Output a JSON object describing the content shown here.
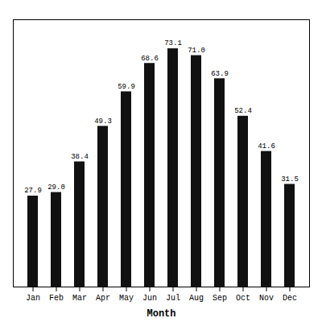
{
  "chart_data": {
    "type": "bar",
    "categories": [
      "Jan",
      "Feb",
      "Mar",
      "Apr",
      "May",
      "Jun",
      "Jul",
      "Aug",
      "Sep",
      "Oct",
      "Nov",
      "Dec"
    ],
    "values": [
      27.9,
      29.0,
      38.4,
      49.3,
      59.9,
      68.6,
      73.1,
      71.0,
      63.9,
      52.4,
      41.6,
      31.5
    ],
    "value_labels": [
      "27.9",
      "29.0",
      "38.4",
      "49.3",
      "59.9",
      "68.6",
      "73.1",
      "71.0",
      "63.9",
      "52.4",
      "41.6",
      "31.5"
    ],
    "color": "#111111",
    "xlabel": "Month",
    "ylim": [
      0,
      82
    ],
    "data_labels": true,
    "tick_labels": "x"
  }
}
